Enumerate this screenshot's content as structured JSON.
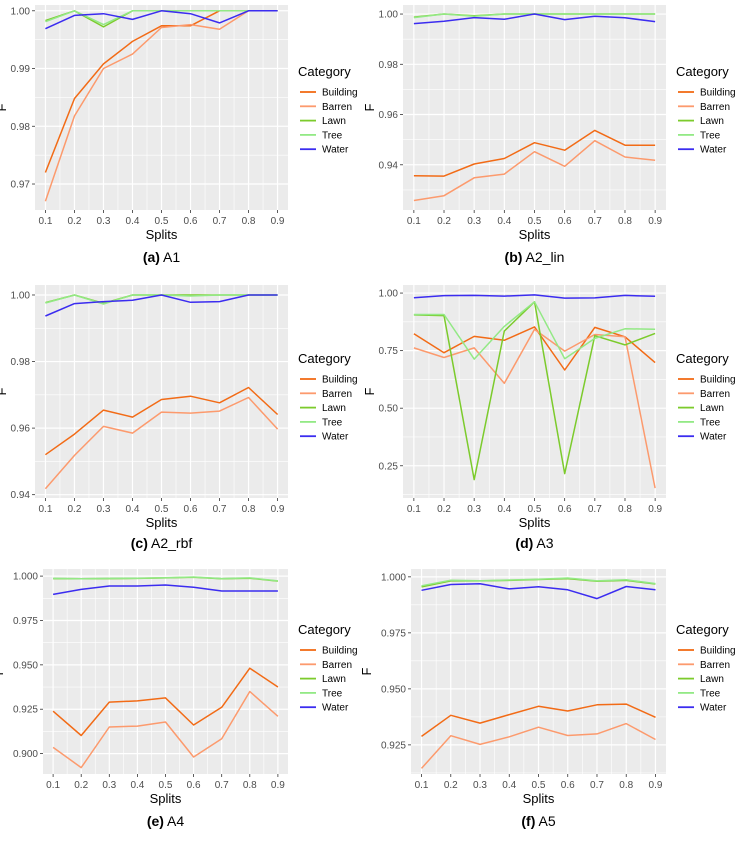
{
  "colors": {
    "Building": "#f26b16",
    "Barren": "#fc9a6d",
    "Lawn": "#7ccb2c",
    "Tree": "#93e985",
    "Water": "#3b2cf0",
    "panel_bg": "#ebebeb",
    "grid": "#ffffff",
    "axis_text": "#4d4d4d"
  },
  "legend": {
    "title": "Category",
    "entries": [
      "Building",
      "Barren",
      "Lawn",
      "Tree",
      "Water"
    ]
  },
  "chart_data": [
    {
      "type": "line",
      "caption_letter": "(a)",
      "caption_text": "A1",
      "xlabel": "Splits",
      "ylabel": "F",
      "x": [
        0.1,
        0.2,
        0.3,
        0.4,
        0.5,
        0.6,
        0.7,
        0.8,
        0.9
      ],
      "xtick_labels": [
        "0.1",
        "0.2",
        "0.3",
        "0.4",
        "0.5",
        "0.6",
        "0.7",
        "0.8",
        "0.9"
      ],
      "ylim": [
        0.9655,
        1.001
      ],
      "yticks": [
        0.97,
        0.98,
        0.99,
        1.0
      ],
      "ytick_labels": [
        "0.97",
        "0.98",
        "0.99",
        "1.00"
      ],
      "series": [
        {
          "name": "Building",
          "values": [
            0.972,
            0.9848,
            0.9908,
            0.9947,
            0.9974,
            0.9974,
            1.0,
            1.0,
            1.0
          ]
        },
        {
          "name": "Barren",
          "values": [
            0.967,
            0.9818,
            0.99,
            0.9925,
            0.9971,
            0.9976,
            0.9968,
            1.0,
            1.0
          ]
        },
        {
          "name": "Lawn",
          "values": [
            0.9983,
            1.0,
            0.9972,
            1.0,
            1.0,
            1.0,
            1.0,
            1.0,
            1.0
          ]
        },
        {
          "name": "Tree",
          "values": [
            0.9981,
            1.0,
            0.9976,
            1.0,
            1.0,
            1.0,
            1.0,
            1.0,
            1.0
          ]
        },
        {
          "name": "Water",
          "values": [
            0.9969,
            0.9992,
            0.9995,
            0.9985,
            1.0,
            0.9995,
            0.9979,
            1.0,
            1.0
          ]
        }
      ]
    },
    {
      "type": "line",
      "caption_letter": "(b)",
      "caption_text": "A2_lin",
      "xlabel": "Splits",
      "ylabel": "F",
      "x": [
        0.1,
        0.2,
        0.3,
        0.4,
        0.5,
        0.6,
        0.7,
        0.8,
        0.9
      ],
      "xtick_labels": [
        "0.1",
        "0.2",
        "0.3",
        "0.4",
        "0.5",
        "0.6",
        "0.7",
        "0.8",
        "0.9"
      ],
      "ylim": [
        0.922,
        1.0036
      ],
      "yticks": [
        0.94,
        0.96,
        0.98,
        1.0
      ],
      "ytick_labels": [
        "0.94",
        "0.96",
        "0.98",
        "1.00"
      ],
      "series": [
        {
          "name": "Building",
          "values": [
            0.9356,
            0.9355,
            0.9403,
            0.9425,
            0.9488,
            0.9458,
            0.9537,
            0.9478,
            0.9478
          ]
        },
        {
          "name": "Barren",
          "values": [
            0.9258,
            0.9277,
            0.9348,
            0.9363,
            0.9452,
            0.9394,
            0.9496,
            0.9431,
            0.9418
          ]
        },
        {
          "name": "Lawn",
          "values": [
            0.9988,
            1.0,
            0.9993,
            1.0,
            1.0,
            1.0,
            1.0,
            1.0,
            1.0
          ]
        },
        {
          "name": "Tree",
          "values": [
            0.9986,
            1.0,
            0.9991,
            1.0,
            1.0,
            1.0,
            1.0,
            1.0,
            1.0
          ]
        },
        {
          "name": "Water",
          "values": [
            0.9962,
            0.9971,
            0.9986,
            0.9979,
            1.0,
            0.9978,
            0.9991,
            0.9985,
            0.997
          ]
        }
      ]
    },
    {
      "type": "line",
      "caption_letter": "(c)",
      "caption_text": "A2_rbf",
      "xlabel": "Splits",
      "ylabel": "F",
      "x": [
        0.1,
        0.2,
        0.3,
        0.4,
        0.5,
        0.6,
        0.7,
        0.8,
        0.9
      ],
      "xtick_labels": [
        "0.1",
        "0.2",
        "0.3",
        "0.4",
        "0.5",
        "0.6",
        "0.7",
        "0.8",
        "0.9"
      ],
      "ylim": [
        0.939,
        1.003
      ],
      "yticks": [
        0.94,
        0.96,
        0.98,
        1.0
      ],
      "ytick_labels": [
        "0.94",
        "0.96",
        "0.98",
        "1.00"
      ],
      "series": [
        {
          "name": "Building",
          "values": [
            0.952,
            0.9582,
            0.9654,
            0.9633,
            0.9686,
            0.9696,
            0.9676,
            0.9722,
            0.9641
          ]
        },
        {
          "name": "Barren",
          "values": [
            0.9418,
            0.9518,
            0.9605,
            0.9585,
            0.9648,
            0.9645,
            0.9651,
            0.9692,
            0.9597
          ]
        },
        {
          "name": "Lawn",
          "values": [
            0.9977,
            1.0,
            0.9975,
            1.0,
            1.0,
            1.0,
            1.0,
            1.0,
            1.0
          ]
        },
        {
          "name": "Tree",
          "values": [
            0.9976,
            1.0,
            0.9973,
            1.0,
            1.0,
            0.9997,
            1.0,
            1.0,
            1.0
          ]
        },
        {
          "name": "Water",
          "values": [
            0.9937,
            0.9974,
            0.998,
            0.9984,
            1.0,
            0.9978,
            0.998,
            1.0,
            1.0
          ]
        }
      ]
    },
    {
      "type": "line",
      "caption_letter": "(d)",
      "caption_text": "A3",
      "xlabel": "Splits",
      "ylabel": "F",
      "x": [
        0.1,
        0.2,
        0.3,
        0.4,
        0.5,
        0.6,
        0.7,
        0.8,
        0.9
      ],
      "xtick_labels": [
        "0.1",
        "0.2",
        "0.3",
        "0.4",
        "0.5",
        "0.6",
        "0.7",
        "0.8",
        "0.9"
      ],
      "ylim": [
        0.11,
        1.035
      ],
      "yticks": [
        0.25,
        0.5,
        0.75,
        1.0
      ],
      "ytick_labels": [
        "0.25",
        "0.50",
        "0.75",
        "1.00"
      ],
      "series": [
        {
          "name": "Building",
          "values": [
            0.823,
            0.741,
            0.812,
            0.795,
            0.853,
            0.666,
            0.851,
            0.81,
            0.698
          ]
        },
        {
          "name": "Barren",
          "values": [
            0.762,
            0.72,
            0.762,
            0.608,
            0.842,
            0.748,
            0.82,
            0.81,
            0.153
          ]
        },
        {
          "name": "Lawn",
          "values": [
            0.905,
            0.902,
            0.19,
            0.835,
            0.962,
            0.216,
            0.815,
            0.775,
            0.825
          ]
        },
        {
          "name": "Tree",
          "values": [
            0.907,
            0.907,
            0.713,
            0.855,
            0.962,
            0.715,
            0.803,
            0.845,
            0.843
          ]
        },
        {
          "name": "Water",
          "values": [
            0.98,
            0.989,
            0.99,
            0.987,
            0.992,
            0.978,
            0.979,
            0.99,
            0.986
          ]
        }
      ]
    },
    {
      "type": "line",
      "caption_letter": "(e)",
      "caption_text": "A4",
      "xlabel": "Splits",
      "ylabel": "F",
      "x": [
        0.1,
        0.2,
        0.3,
        0.4,
        0.5,
        0.6,
        0.7,
        0.8,
        0.9
      ],
      "xtick_labels": [
        "0.1",
        "0.2",
        "0.3",
        "0.4",
        "0.5",
        "0.6",
        "0.7",
        "0.8",
        "0.9"
      ],
      "ylim": [
        0.8885,
        1.004
      ],
      "yticks": [
        0.9,
        0.925,
        0.95,
        0.975,
        1.0
      ],
      "ytick_labels": [
        "0.900",
        "0.925",
        "0.950",
        "0.975",
        "1.000"
      ],
      "series": [
        {
          "name": "Building",
          "values": [
            0.9239,
            0.9102,
            0.929,
            0.9297,
            0.9314,
            0.9161,
            0.9261,
            0.9481,
            0.9375
          ]
        },
        {
          "name": "Barren",
          "values": [
            0.9035,
            0.8921,
            0.915,
            0.9155,
            0.9178,
            0.8981,
            0.9084,
            0.935,
            0.921
          ]
        },
        {
          "name": "Lawn",
          "values": [
            0.9986,
            0.9985,
            0.9986,
            0.9987,
            0.999,
            0.9994,
            0.9985,
            0.9988,
            0.9972
          ]
        },
        {
          "name": "Tree",
          "values": [
            0.9987,
            0.9985,
            0.9987,
            0.9988,
            0.9991,
            0.9995,
            0.9986,
            0.999,
            0.9973
          ]
        },
        {
          "name": "Water",
          "values": [
            0.9897,
            0.9925,
            0.9944,
            0.9944,
            0.995,
            0.9937,
            0.9916,
            0.9916,
            0.9916
          ]
        }
      ]
    },
    {
      "type": "line",
      "caption_letter": "(f)",
      "caption_text": "A5",
      "xlabel": "Splits",
      "ylabel": "F",
      "x": [
        0.1,
        0.2,
        0.3,
        0.4,
        0.5,
        0.6,
        0.7,
        0.8,
        0.9
      ],
      "xtick_labels": [
        "0.1",
        "0.2",
        "0.3",
        "0.4",
        "0.5",
        "0.6",
        "0.7",
        "0.8",
        "0.9"
      ],
      "ylim": [
        0.912,
        1.0035
      ],
      "yticks": [
        0.925,
        0.95,
        0.975,
        1.0
      ],
      "ytick_labels": [
        "0.925",
        "0.950",
        "0.975",
        "1.000"
      ],
      "series": [
        {
          "name": "Building",
          "values": [
            0.9288,
            0.9382,
            0.9347,
            0.9385,
            0.9422,
            0.9401,
            0.9429,
            0.9432,
            0.9373
          ]
        },
        {
          "name": "Barren",
          "values": [
            0.9145,
            0.9291,
            0.9252,
            0.9286,
            0.9329,
            0.9292,
            0.9299,
            0.9345,
            0.9274
          ]
        },
        {
          "name": "Lawn",
          "values": [
            0.9955,
            0.9982,
            0.9982,
            0.9984,
            0.9988,
            0.9992,
            0.998,
            0.9984,
            0.9968
          ]
        },
        {
          "name": "Tree",
          "values": [
            0.996,
            0.9985,
            0.9983,
            0.9986,
            0.9989,
            0.9995,
            0.9982,
            0.9987,
            0.997
          ]
        },
        {
          "name": "Water",
          "values": [
            0.994,
            0.9966,
            0.9969,
            0.9946,
            0.9956,
            0.9942,
            0.9903,
            0.9957,
            0.9942
          ]
        }
      ]
    }
  ]
}
